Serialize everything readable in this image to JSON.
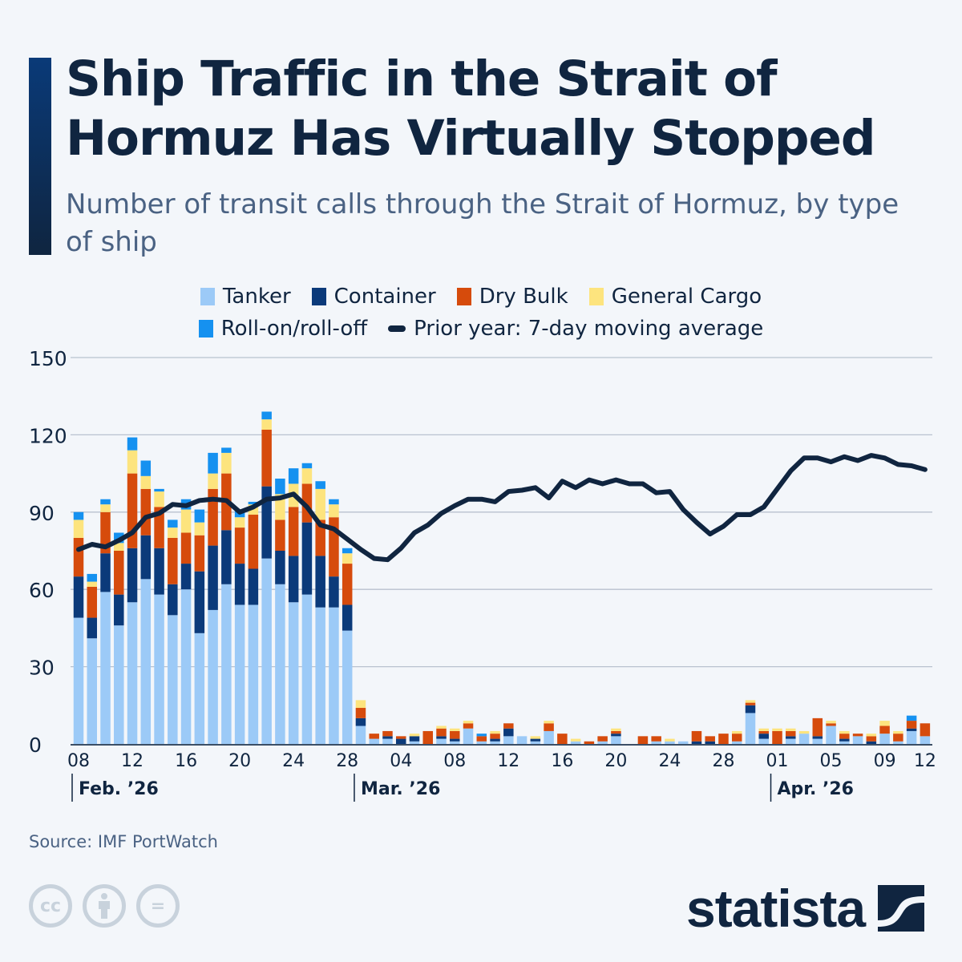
{
  "header": {
    "title": "Ship Traffic in the Strait of Hormuz Has Virtually Stopped",
    "subtitle": "Number of transit calls through the Strait of Hormuz, by type of ship"
  },
  "legend": {
    "items": [
      {
        "label": "Tanker",
        "color": "#9ccaf7"
      },
      {
        "label": "Container",
        "color": "#0b3a7a"
      },
      {
        "label": "Dry Bulk",
        "color": "#d64b0c"
      },
      {
        "label": "General Cargo",
        "color": "#fde47e"
      },
      {
        "label": "Roll-on/roll-off",
        "color": "#1591f0"
      }
    ],
    "line_label": "Prior year: 7-day moving average",
    "line_color": "#102540"
  },
  "footer": {
    "source": "Source: IMF PortWatch",
    "cc_icons": [
      "cc-icon",
      "attribution-icon",
      "no-derivatives-icon"
    ],
    "cc_glyph": "cc",
    "nd_glyph": "=",
    "brand": "statista"
  },
  "chart_data": {
    "type": "bar",
    "stacked": true,
    "title": "Ship Traffic in the Strait of Hormuz Has Virtually Stopped",
    "subtitle": "Number of transit calls through the Strait of Hormuz, by type of ship",
    "xlabel": "",
    "ylabel": "",
    "ylim": [
      0,
      150
    ],
    "yticks": [
      0,
      30,
      60,
      90,
      120,
      150
    ],
    "grid": true,
    "legend_position": "top-center",
    "x_start": "2026-02-08",
    "x_end": "2026-04-12",
    "xtick_labels": [
      {
        "day_index": 0,
        "label": "08"
      },
      {
        "day_index": 4,
        "label": "12"
      },
      {
        "day_index": 8,
        "label": "16"
      },
      {
        "day_index": 12,
        "label": "20"
      },
      {
        "day_index": 16,
        "label": "24"
      },
      {
        "day_index": 20,
        "label": "28"
      },
      {
        "day_index": 24,
        "label": "04"
      },
      {
        "day_index": 28,
        "label": "08"
      },
      {
        "day_index": 32,
        "label": "12"
      },
      {
        "day_index": 36,
        "label": "16"
      },
      {
        "day_index": 40,
        "label": "20"
      },
      {
        "day_index": 44,
        "label": "24"
      },
      {
        "day_index": 48,
        "label": "28"
      },
      {
        "day_index": 52,
        "label": "01"
      },
      {
        "day_index": 56,
        "label": "05"
      },
      {
        "day_index": 60,
        "label": "09"
      },
      {
        "day_index": 63,
        "label": "12"
      }
    ],
    "month_labels": [
      {
        "day_index": 0,
        "label": "Feb. ’26"
      },
      {
        "day_index": 21,
        "label": "Mar. ’26"
      },
      {
        "day_index": 52,
        "label": "Apr. ’26"
      }
    ],
    "series": [
      {
        "name": "Tanker",
        "color": "#9ccaf7",
        "values": [
          49,
          41,
          59,
          46,
          55,
          64,
          58,
          50,
          60,
          43,
          52,
          62,
          54,
          54,
          72,
          62,
          55,
          58,
          53,
          53,
          44,
          7,
          2,
          2,
          0,
          1,
          0,
          2,
          1,
          6,
          1,
          1,
          3,
          3,
          1,
          5,
          0,
          1,
          0,
          1,
          3,
          0,
          0,
          1,
          1,
          1,
          0,
          0,
          0,
          1,
          12,
          2,
          0,
          2,
          4,
          2,
          7,
          1,
          3,
          0,
          4,
          1,
          5,
          3
        ]
      },
      {
        "name": "Container",
        "color": "#0b3a7a",
        "values": [
          16,
          8,
          15,
          12,
          21,
          17,
          18,
          12,
          10,
          24,
          25,
          21,
          16,
          14,
          28,
          13,
          18,
          28,
          20,
          12,
          10,
          3,
          0,
          1,
          2,
          2,
          0,
          1,
          1,
          0,
          0,
          1,
          3,
          0,
          1,
          0,
          0,
          0,
          0,
          0,
          1,
          0,
          0,
          0,
          0,
          0,
          1,
          1,
          0,
          0,
          3,
          2,
          0,
          1,
          0,
          1,
          0,
          1,
          0,
          1,
          0,
          0,
          1,
          0
        ]
      },
      {
        "name": "Dry Bulk",
        "color": "#d64b0c",
        "values": [
          15,
          12,
          16,
          17,
          29,
          18,
          16,
          18,
          12,
          14,
          22,
          22,
          14,
          21,
          22,
          12,
          19,
          15,
          14,
          23,
          16,
          4,
          2,
          2,
          1,
          0,
          5,
          3,
          3,
          2,
          2,
          2,
          2,
          0,
          0,
          3,
          4,
          0,
          1,
          2,
          1,
          0,
          3,
          2,
          0,
          0,
          4,
          2,
          4,
          3,
          1,
          1,
          5,
          2,
          0,
          7,
          1,
          2,
          1,
          2,
          3,
          3,
          3,
          5
        ]
      },
      {
        "name": "General Cargo",
        "color": "#fde47e",
        "values": [
          7,
          2,
          3,
          3,
          9,
          5,
          6,
          4,
          9,
          5,
          6,
          8,
          4,
          4,
          4,
          10,
          9,
          6,
          12,
          5,
          4,
          3,
          0,
          0,
          0,
          1,
          0,
          1,
          1,
          1,
          0,
          1,
          0,
          0,
          1,
          1,
          0,
          1,
          0,
          0,
          1,
          0,
          0,
          0,
          1,
          0,
          0,
          0,
          0,
          1,
          1,
          1,
          1,
          1,
          1,
          0,
          1,
          1,
          0,
          1,
          2,
          1,
          0,
          0
        ]
      },
      {
        "name": "Roll-on/roll-off",
        "color": "#1591f0",
        "values": [
          3,
          3,
          2,
          4,
          5,
          6,
          1,
          3,
          4,
          5,
          8,
          2,
          3,
          1,
          3,
          6,
          6,
          2,
          3,
          2,
          2,
          0,
          0,
          0,
          0,
          0,
          0,
          0,
          0,
          0,
          1,
          0,
          0,
          0,
          0,
          0,
          0,
          0,
          0,
          0,
          0,
          0,
          0,
          0,
          0,
          0,
          0,
          0,
          0,
          0,
          0,
          0,
          0,
          0,
          0,
          0,
          0,
          0,
          0,
          0,
          0,
          0,
          2,
          0
        ]
      }
    ],
    "line": {
      "name": "Prior year: 7-day moving average",
      "color": "#102540",
      "values": [
        75.5,
        77.5,
        76.5,
        79,
        82,
        88,
        89.5,
        93,
        92.5,
        94.5,
        95,
        94.5,
        90,
        92,
        95,
        95.5,
        97,
        92,
        85,
        83.5,
        79.5,
        75.5,
        72,
        71.5,
        76,
        82,
        85,
        89.5,
        92.5,
        95,
        95,
        94,
        98,
        98.5,
        99.5,
        95.5,
        102,
        99.5,
        102.5,
        101,
        102.5,
        101,
        101,
        97.5,
        98,
        91,
        86,
        81.5,
        84.5,
        89,
        89,
        92,
        99,
        106,
        111,
        111,
        109.5,
        111.5,
        110,
        112,
        111,
        108.5,
        108,
        106.5
      ]
    }
  }
}
